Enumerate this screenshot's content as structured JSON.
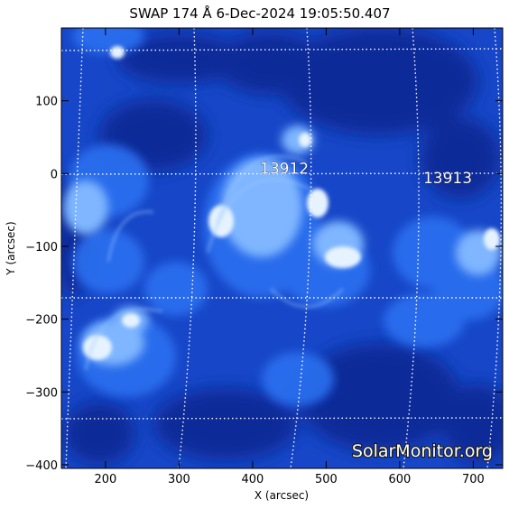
{
  "title": "SWAP 174 Å  6-Dec-2024 19:05:50.407",
  "xlabel": "X (arcsec)",
  "ylabel": "Y (arcsec)",
  "x_range": [
    140,
    740
  ],
  "y_range": [
    -405,
    200
  ],
  "x_ticks": [
    200,
    300,
    400,
    500,
    600,
    700
  ],
  "y_ticks": [
    100,
    0,
    -100,
    -200,
    -300,
    -400
  ],
  "x_tick_labels": [
    "200",
    "300",
    "400",
    "500",
    "600",
    "700"
  ],
  "y_tick_labels": [
    "100",
    "0",
    "−100",
    "−200",
    "−300",
    "−400"
  ],
  "active_regions": [
    {
      "label": "13912",
      "x": 410,
      "y": 0
    },
    {
      "label": "13913",
      "x": 632,
      "y": -13
    }
  ],
  "watermark": "SolarMonitor.org",
  "colors": {
    "background": "#ffffff",
    "image_dark": "#0a2a99",
    "image_mid": "#1e5ae6",
    "image_bright": "#dff0ff",
    "grid": "#ffffff"
  },
  "grid_lines": true
}
